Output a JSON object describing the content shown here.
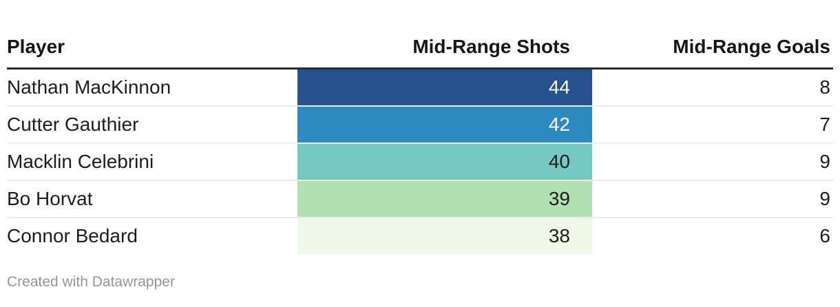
{
  "header": {
    "columns": [
      {
        "label": "Player"
      },
      {
        "label": "Mid-Range Shots"
      },
      {
        "label": "Mid-Range Goals"
      }
    ]
  },
  "rows": [
    {
      "player": "Nathan MacKinnon",
      "shots": "44",
      "goals": "8",
      "shots_bg": "#27508f",
      "shots_color": "#ffffff"
    },
    {
      "player": "Cutter Gauthier",
      "shots": "42",
      "goals": "7",
      "shots_bg": "#2d8abe",
      "shots_color": "#ffffff"
    },
    {
      "player": "Macklin Celebrini",
      "shots": "40",
      "goals": "9",
      "shots_bg": "#76c8c3",
      "shots_color": "#1d1d1d"
    },
    {
      "player": "Bo Horvat",
      "shots": "39",
      "goals": "9",
      "shots_bg": "#b2e0b4",
      "shots_color": "#1d1d1d"
    },
    {
      "player": "Connor Bedard",
      "shots": "38",
      "goals": "6",
      "shots_bg": "#edf8e7",
      "shots_color": "#1d1d1d"
    }
  ],
  "footer": {
    "credit": "Created with Datawrapper"
  },
  "colors": {
    "header_border": "#2b2b2b",
    "row_divider": "#ebebeb",
    "header_text": "#161616",
    "body_text": "#1d1d1d",
    "footer_text": "#959595"
  },
  "chart_data": {
    "type": "table",
    "title": "",
    "columns": [
      "Player",
      "Mid-Range Shots",
      "Mid-Range Goals"
    ],
    "rows": [
      [
        "Nathan MacKinnon",
        44,
        8
      ],
      [
        "Cutter Gauthier",
        42,
        7
      ],
      [
        "Macklin Celebrini",
        40,
        9
      ],
      [
        "Bo Horvat",
        39,
        9
      ],
      [
        "Connor Bedard",
        38,
        6
      ]
    ],
    "heatmap": {
      "column": "Mid-Range Shots",
      "min": 38,
      "max": 44,
      "palette_low_to_high": [
        "#edf8e7",
        "#b2e0b4",
        "#76c8c3",
        "#2d8abe",
        "#27508f"
      ]
    },
    "layout_hints": {
      "heatmap_values_align": "right",
      "numeric_columns_align": "right",
      "grid": "horizontal-dividers",
      "legend": "none"
    },
    "footer": "Created with Datawrapper"
  }
}
